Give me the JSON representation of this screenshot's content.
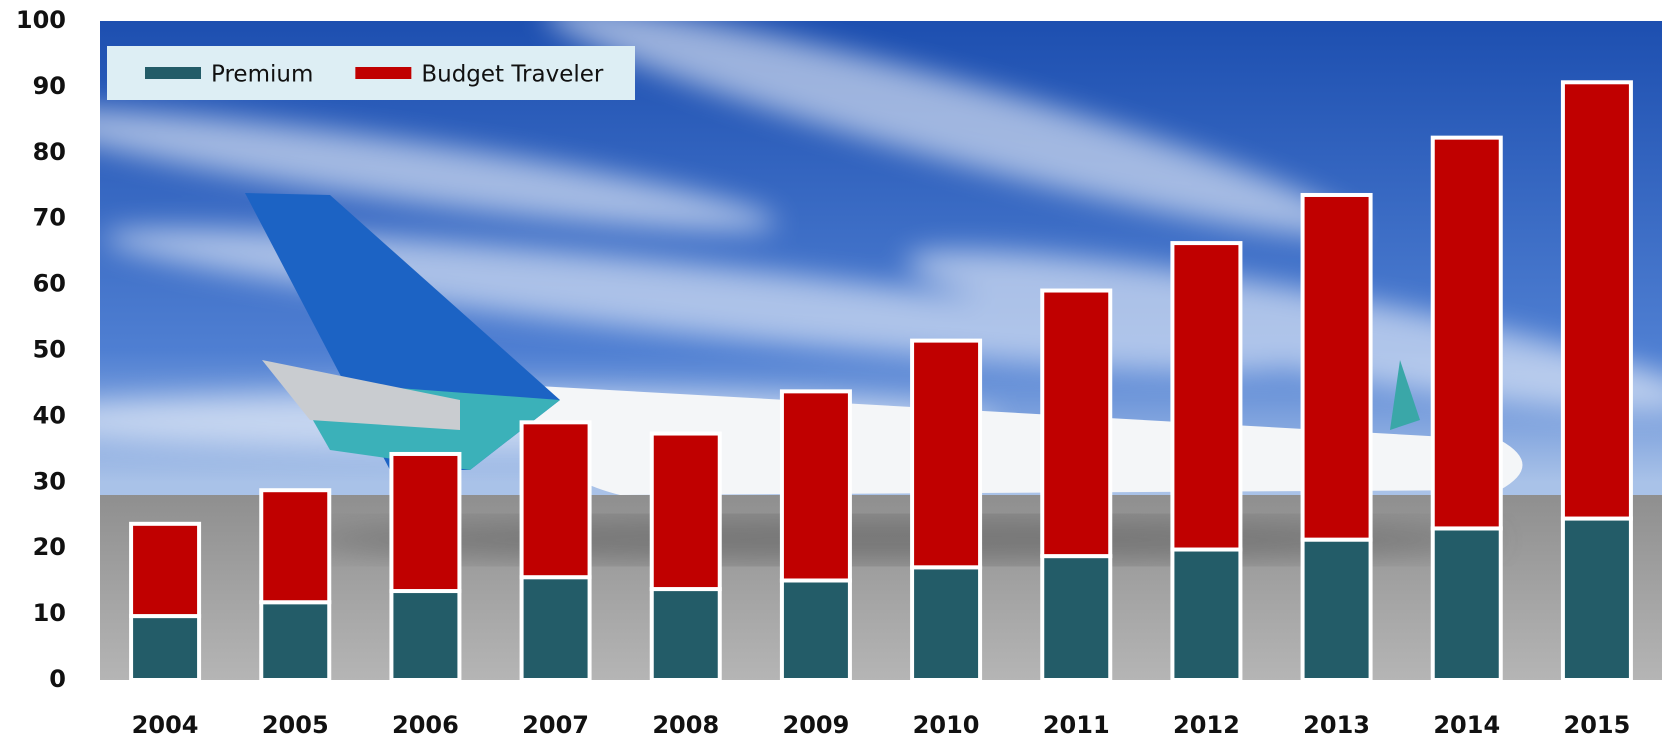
{
  "chart_data": {
    "type": "stacked_bar",
    "categories": [
      "2004",
      "2005",
      "2006",
      "2007",
      "2008",
      "2009",
      "2010",
      "2011",
      "2012",
      "2013",
      "2014",
      "2015"
    ],
    "series": [
      {
        "name": "Premium",
        "color": "#235c68",
        "values": [
          9.7,
          11.8,
          13.5,
          15.6,
          13.8,
          15.1,
          17.1,
          18.8,
          19.8,
          21.3,
          23.0,
          24.5
        ]
      },
      {
        "name": "Budget Traveler",
        "color": "#c00000",
        "values": [
          14.0,
          17.0,
          20.8,
          23.5,
          23.6,
          28.7,
          34.4,
          40.3,
          46.5,
          52.3,
          59.3,
          66.2
        ]
      }
    ],
    "ylim": [
      0,
      100
    ],
    "yticks": [
      0,
      10,
      20,
      30,
      40,
      50,
      60,
      70,
      80,
      90,
      100
    ],
    "legend": "top-left"
  }
}
